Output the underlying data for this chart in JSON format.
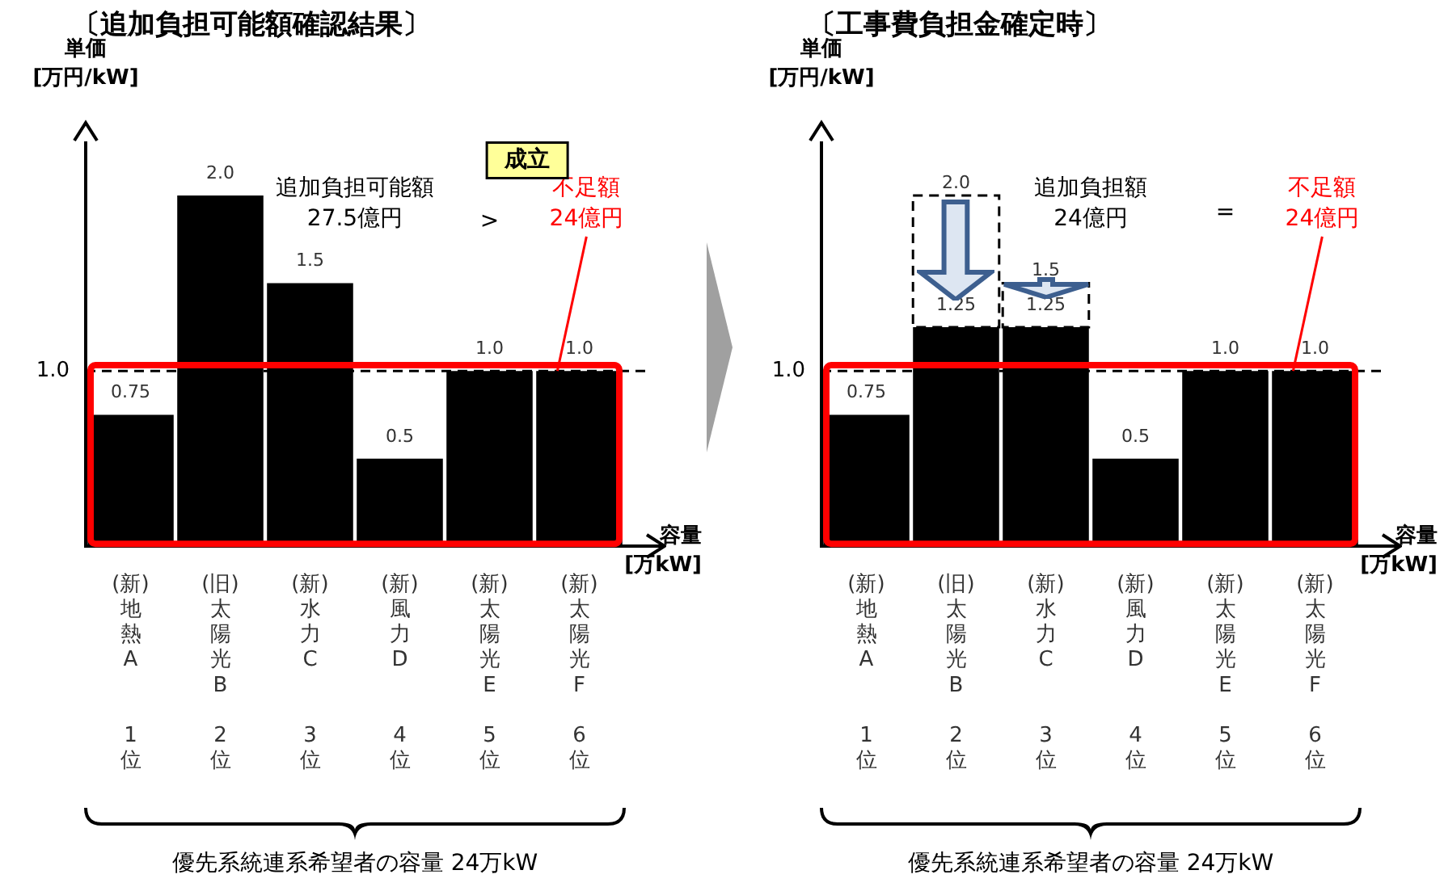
{
  "chart_data": [
    {
      "type": "bar",
      "title": "〔追加負担可能額確認結果〕",
      "ylabel": "単価\n[万円/kW]",
      "xlabel": "容量\n[万kW]",
      "categories": [
        "(新)地熱A1位",
        "(旧)太陽光B2位",
        "(新)水力C3位",
        "(新)風力D4位",
        "(新)太陽光E5位",
        "(新)太陽光F6位"
      ],
      "series": [
        {
          "color": "#000000",
          "values": [
            0.75,
            2.0,
            1.5,
            0.5,
            1.0,
            1.0
          ],
          "value_labels": [
            "0.75",
            "2.0",
            "1.5",
            "0.5",
            "1.0",
            "1.0"
          ]
        }
      ],
      "ylim": [
        0,
        2.3
      ],
      "ref_lines": [
        {
          "axis": "y",
          "value": 1.0,
          "label": "1.0",
          "color": "#000000",
          "line_style": "dashed"
        }
      ],
      "annotations": [
        "追加負担可能額\n27.5億円",
        ">",
        "不足額\n24億円",
        "成立",
        "優先系統連系希望者の容量 24万kW"
      ]
    },
    {
      "type": "bar",
      "title": "〔工事費負担金確定時〕",
      "ylabel": "単価\n[万円/kW]",
      "xlabel": "容量\n[万kW]",
      "stacked": true,
      "categories": [
        "(新)地熱A1位",
        "(旧)太陽光B2位",
        "(新)水力C3位",
        "(新)風力D4位",
        "(新)太陽光E5位",
        "(新)太陽光F6位"
      ],
      "series": [
        {
          "color": "#000000",
          "values": [
            0.75,
            1.25,
            1.25,
            0.5,
            1.0,
            1.0
          ],
          "value_labels": [
            "0.75",
            "1.25",
            "1.25",
            "0.5",
            "1.0",
            "1.0"
          ]
        },
        {
          "color": "#ffffff",
          "line_style": "dashed",
          "values": [
            null,
            0.75,
            0.25,
            null,
            null,
            null
          ]
        }
      ],
      "totals": [
        null,
        "2.0",
        "1.5",
        null,
        null,
        null
      ],
      "ylim": [
        0,
        2.3
      ],
      "ref_lines": [
        {
          "axis": "y",
          "value": 1.0,
          "label": "1.0",
          "color": "#000000",
          "line_style": "dashed"
        }
      ],
      "annotations": [
        "追加負担額\n24億円",
        "=",
        "不足額\n24億円",
        "優先系統連系希望者の容量 24万kW"
      ]
    }
  ]
}
